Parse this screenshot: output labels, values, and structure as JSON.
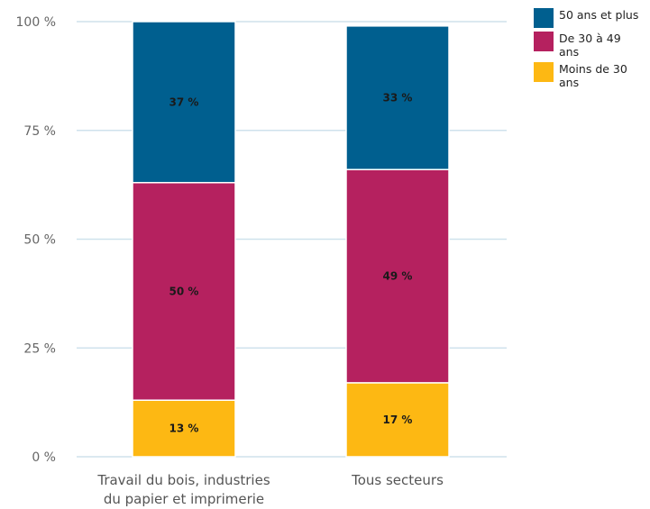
{
  "chart_data": {
    "type": "bar",
    "stacked": true,
    "categories": [
      [
        "Travail du bois, industries",
        "du papier et imprimerie"
      ],
      [
        "Tous secteurs"
      ]
    ],
    "series": [
      {
        "name": "Moins de 30 ans",
        "color": "#FDB813",
        "values": [
          13,
          17
        ],
        "labels": [
          "13 %",
          "17 %"
        ]
      },
      {
        "name": "De 30 à 49 ans",
        "color": "#B5215F",
        "values": [
          50,
          49
        ],
        "labels": [
          "50 %",
          "49 %"
        ]
      },
      {
        "name": "50 ans et plus",
        "color": "#005F8F",
        "values": [
          37,
          33
        ],
        "labels": [
          "37 %",
          "33 %"
        ]
      }
    ],
    "ylim": [
      0,
      100
    ],
    "yticks": [
      0,
      25,
      50,
      75,
      100
    ],
    "ytick_labels": [
      "0 %",
      "25 %",
      "50 %",
      "75 %",
      "100 %"
    ],
    "grid": true,
    "legend_position": "top-right",
    "legend": [
      {
        "label_lines": [
          "50 ans et plus"
        ],
        "color": "#005F8F"
      },
      {
        "label_lines": [
          "De 30 à 49",
          "ans"
        ],
        "color": "#B5215F"
      },
      {
        "label_lines": [
          "Moins de 30",
          "ans"
        ],
        "color": "#FDB813"
      }
    ]
  }
}
